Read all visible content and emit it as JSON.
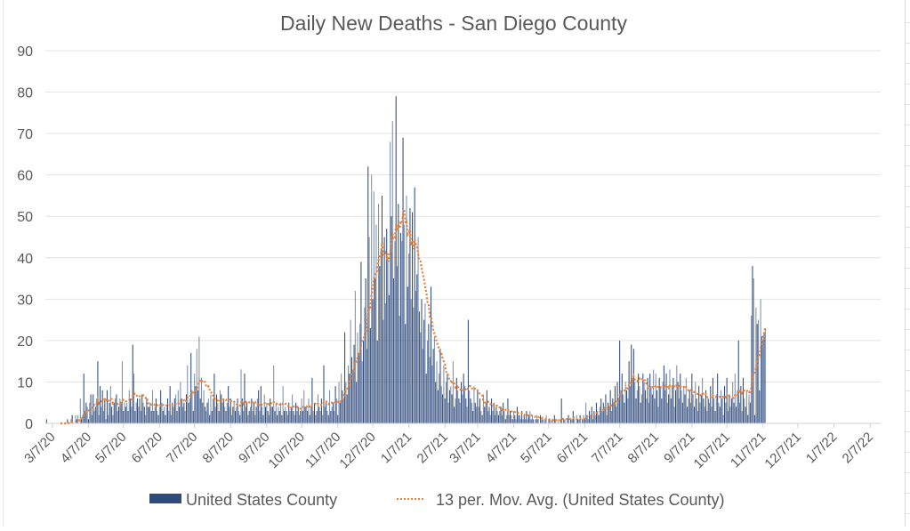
{
  "chart_data": {
    "type": "bar",
    "title": "Daily New Deaths - San Diego County",
    "xlabel": "",
    "ylabel": "",
    "ylim": [
      0,
      90
    ],
    "yticks": [
      0,
      10,
      20,
      30,
      40,
      50,
      60,
      70,
      80,
      90
    ],
    "grid": true,
    "legend_position": "bottom",
    "x_start_date": "2020-03-01",
    "x_end_date": "2022-02-16",
    "xtick_labels": [
      "3/7/20",
      "4/7/20",
      "5/7/20",
      "6/7/20",
      "7/7/20",
      "8/7/20",
      "9/7/20",
      "10/7/20",
      "11/7/20",
      "12/7/20",
      "1/7/21",
      "2/7/21",
      "3/7/21",
      "4/7/21",
      "5/7/21",
      "6/7/21",
      "7/7/21",
      "8/7/21",
      "9/7/21",
      "10/7/21",
      "11/7/21",
      "12/7/21",
      "1/7/22",
      "2/7/22"
    ],
    "xtick_dates": [
      "2020-03-07",
      "2020-04-07",
      "2020-05-07",
      "2020-06-07",
      "2020-07-07",
      "2020-08-07",
      "2020-09-07",
      "2020-10-07",
      "2020-11-07",
      "2020-12-07",
      "2021-01-07",
      "2021-02-07",
      "2021-03-07",
      "2021-04-07",
      "2021-05-07",
      "2021-06-07",
      "2021-07-07",
      "2021-08-07",
      "2021-09-07",
      "2021-10-07",
      "2021-11-07",
      "2021-12-07",
      "2022-01-07",
      "2022-02-07"
    ],
    "series": [
      {
        "name": "United States County",
        "kind": "bar",
        "color": "#2f4b7c",
        "start_date": "2020-03-02",
        "values": [
          1,
          0,
          0,
          0,
          0,
          0,
          0,
          0,
          0,
          0,
          0,
          0,
          0,
          0,
          0,
          0,
          0,
          0,
          1,
          0,
          0,
          1,
          2,
          0,
          0,
          2,
          1,
          2,
          0,
          6,
          1,
          2,
          12,
          3,
          5,
          4,
          1,
          5,
          7,
          2,
          7,
          3,
          4,
          6,
          15,
          2,
          9,
          4,
          8,
          3,
          6,
          1,
          8,
          2,
          5,
          9,
          4,
          2,
          5,
          6,
          7,
          3,
          4,
          6,
          5,
          15,
          3,
          5,
          4,
          5,
          3,
          8,
          6,
          4,
          19,
          12,
          3,
          5,
          6,
          4,
          6,
          3,
          7,
          5,
          4,
          2,
          6,
          4,
          4,
          5,
          3,
          8,
          3,
          4,
          6,
          3,
          2,
          4,
          8,
          5,
          3,
          4,
          2,
          4,
          6,
          3,
          9,
          2,
          5,
          4,
          6,
          7,
          3,
          8,
          4,
          10,
          6,
          4,
          5,
          3,
          7,
          14,
          5,
          6,
          17,
          8,
          3,
          12,
          9,
          18,
          8,
          21,
          6,
          11,
          5,
          8,
          4,
          3,
          5,
          6,
          2,
          7,
          3,
          6,
          12,
          4,
          7,
          5,
          3,
          8,
          7,
          5,
          6,
          4,
          3,
          5,
          9,
          4,
          6,
          2,
          4,
          5,
          3,
          4,
          6,
          3,
          2,
          13,
          6,
          3,
          12,
          4,
          5,
          2,
          3,
          4,
          6,
          3,
          5,
          2,
          4,
          6,
          8,
          3,
          9,
          4,
          2,
          7,
          4,
          5,
          3,
          2,
          6,
          4,
          4,
          14,
          3,
          5,
          2,
          4,
          3,
          5,
          2,
          9,
          3,
          4,
          3,
          2,
          5,
          3,
          4,
          7,
          3,
          2,
          5,
          3,
          4,
          2,
          3,
          6,
          3,
          8,
          4,
          4,
          3,
          6,
          2,
          4,
          11,
          3,
          5,
          2,
          3,
          7,
          4,
          3,
          6,
          2,
          14,
          4,
          5,
          3,
          2,
          8,
          3,
          4,
          5,
          3,
          9,
          6,
          2,
          10,
          5,
          12,
          8,
          6,
          22,
          10,
          7,
          14,
          12,
          25,
          16,
          13,
          19,
          32,
          10,
          22,
          17,
          24,
          39,
          15,
          20,
          28,
          35,
          18,
          62,
          45,
          23,
          60,
          30,
          56,
          35,
          48,
          20,
          53,
          38,
          42,
          55,
          25,
          45,
          29,
          47,
          40,
          31,
          68,
          50,
          73,
          35,
          44,
          79,
          38,
          53,
          26,
          46,
          44,
          69,
          48,
          24,
          55,
          33,
          41,
          52,
          30,
          51,
          28,
          57,
          32,
          36,
          45,
          27,
          22,
          30,
          18,
          25,
          29,
          12,
          20,
          24,
          16,
          33,
          14,
          18,
          21,
          10,
          15,
          8,
          12,
          18,
          9,
          7,
          14,
          6,
          10,
          12,
          5,
          8,
          9,
          7,
          15,
          4,
          6,
          11,
          8,
          6,
          5,
          10,
          7,
          12,
          9,
          6,
          4,
          25,
          8,
          6,
          5,
          3,
          9,
          5,
          4,
          8,
          4,
          6,
          3,
          2,
          7,
          4,
          5,
          8,
          3,
          4,
          2,
          6,
          3,
          5,
          2,
          4,
          3,
          2,
          3,
          4,
          2,
          5,
          3,
          1,
          2,
          6,
          2,
          3,
          2,
          1,
          3,
          2,
          1,
          4,
          2,
          2,
          1,
          3,
          1,
          2,
          1,
          3,
          1,
          2,
          3,
          1,
          2,
          1,
          0,
          1,
          2,
          1,
          0,
          2,
          1,
          1,
          0,
          1,
          2,
          0,
          1,
          1,
          0,
          1,
          0,
          2,
          1,
          0,
          1,
          0,
          1,
          6,
          0,
          1,
          1,
          0,
          1,
          2,
          0,
          1,
          1,
          3,
          1,
          0,
          2,
          1,
          1,
          2,
          0,
          1,
          2,
          1,
          5,
          2,
          1,
          3,
          2,
          4,
          1,
          3,
          2,
          5,
          3,
          2,
          4,
          6,
          3,
          5,
          4,
          7,
          2,
          5,
          4,
          8,
          3,
          6,
          5,
          9,
          4,
          10,
          6,
          20,
          8,
          12,
          7,
          5,
          10,
          8,
          6,
          15,
          9,
          19,
          11,
          18,
          10,
          6,
          8,
          12,
          9,
          5,
          7,
          12,
          10,
          8,
          6,
          11,
          5,
          12,
          9,
          7,
          13,
          6,
          12,
          8,
          4,
          11,
          9,
          6,
          10,
          14,
          8,
          12,
          5,
          7,
          13,
          6,
          9,
          11,
          4,
          8,
          14,
          10,
          6,
          12,
          8,
          5,
          9,
          7,
          11,
          4,
          6,
          8,
          5,
          12,
          7,
          4,
          10,
          6,
          3,
          9,
          5,
          7,
          11,
          6,
          4,
          8,
          3,
          6,
          5,
          9,
          4,
          11,
          6,
          3,
          7,
          12,
          5,
          4,
          8,
          6,
          2,
          9,
          5,
          11,
          3,
          7,
          4,
          6,
          10,
          5,
          12,
          4,
          8,
          20,
          5,
          9,
          3,
          11,
          6,
          4,
          8,
          2,
          7,
          5,
          26,
          38,
          35,
          2,
          28,
          24,
          25,
          8,
          30,
          21,
          20,
          22,
          23
        ]
      },
      {
        "name": "13 per. Mov. Avg. (United States County)",
        "kind": "moving_average",
        "period": 13,
        "color": "#ed7d31"
      }
    ]
  }
}
